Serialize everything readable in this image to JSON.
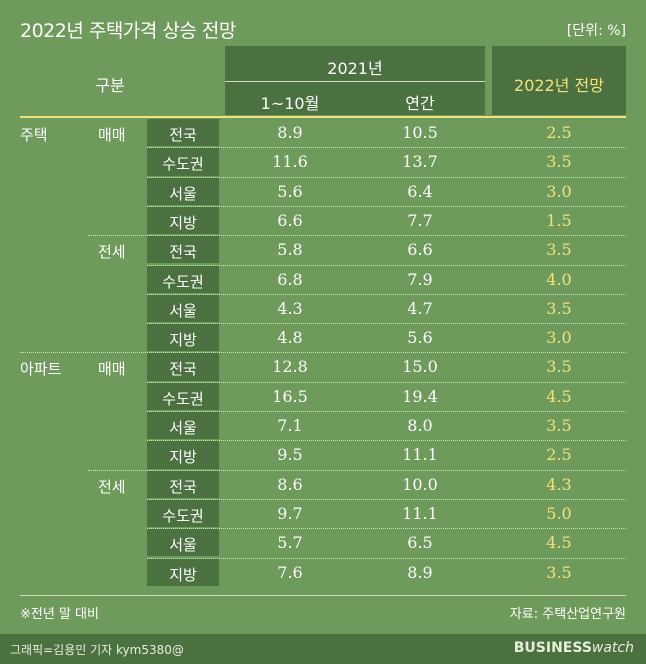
{
  "title": "2022년 주택가격 상승 전망",
  "unit": "[단위: %]",
  "header": {
    "group": "구분",
    "year_2021": "2021년",
    "col_jan_oct": "1~10월",
    "col_annual": "연간",
    "col_forecast": "2022년 전망"
  },
  "chart_data": {
    "type": "table",
    "columns": [
      "2021년 1~10월",
      "2021년 연간",
      "2022년 전망"
    ],
    "groups": [
      {
        "type": "주택",
        "sub": [
          {
            "deal": "매매",
            "rows": [
              {
                "region": "전국",
                "v1": "8.9",
                "v2": "10.5",
                "v3": "2.5"
              },
              {
                "region": "수도권",
                "v1": "11.6",
                "v2": "13.7",
                "v3": "3.5"
              },
              {
                "region": "서울",
                "v1": "5.6",
                "v2": "6.4",
                "v3": "3.0"
              },
              {
                "region": "지방",
                "v1": "6.6",
                "v2": "7.7",
                "v3": "1.5"
              }
            ]
          },
          {
            "deal": "전세",
            "rows": [
              {
                "region": "전국",
                "v1": "5.8",
                "v2": "6.6",
                "v3": "3.5"
              },
              {
                "region": "수도권",
                "v1": "6.8",
                "v2": "7.9",
                "v3": "4.0"
              },
              {
                "region": "서울",
                "v1": "4.3",
                "v2": "4.7",
                "v3": "3.5"
              },
              {
                "region": "지방",
                "v1": "4.8",
                "v2": "5.6",
                "v3": "3.0"
              }
            ]
          }
        ]
      },
      {
        "type": "아파트",
        "sub": [
          {
            "deal": "매매",
            "rows": [
              {
                "region": "전국",
                "v1": "12.8",
                "v2": "15.0",
                "v3": "3.5"
              },
              {
                "region": "수도권",
                "v1": "16.5",
                "v2": "19.4",
                "v3": "4.5"
              },
              {
                "region": "서울",
                "v1": "7.1",
                "v2": "8.0",
                "v3": "3.5"
              },
              {
                "region": "지방",
                "v1": "9.5",
                "v2": "11.1",
                "v3": "2.5"
              }
            ]
          },
          {
            "deal": "전세",
            "rows": [
              {
                "region": "전국",
                "v1": "8.6",
                "v2": "10.0",
                "v3": "4.3"
              },
              {
                "region": "수도권",
                "v1": "9.7",
                "v2": "11.1",
                "v3": "5.0"
              },
              {
                "region": "서울",
                "v1": "5.7",
                "v2": "6.5",
                "v3": "4.5"
              },
              {
                "region": "지방",
                "v1": "7.6",
                "v2": "8.9",
                "v3": "3.5"
              }
            ]
          }
        ]
      }
    ]
  },
  "footnote": "※전년 말 대비",
  "source": "자료: 주택산업연구원",
  "credit": "그래픽=김용민 기자 kym5380@",
  "logo_bold": "BUSINESS",
  "logo_light": "watch",
  "colors": {
    "background": "#6e9a5b",
    "header": "#4c7140",
    "forecast": "#f2e27c"
  }
}
